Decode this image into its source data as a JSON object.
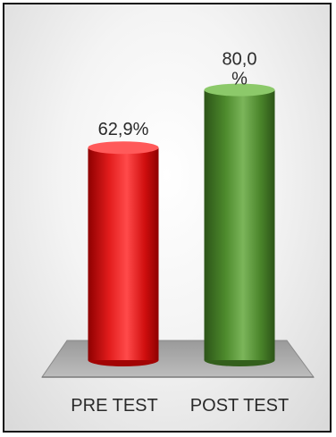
{
  "chart_data": {
    "type": "bar",
    "categories": [
      "PRE TEST",
      "POST TEST"
    ],
    "values": [
      62.9,
      80.0
    ],
    "value_labels": [
      "62,9%",
      "80,0 %"
    ],
    "ylim": [
      0,
      100
    ],
    "grid": false,
    "legend": "none",
    "colors": [
      "#d40f0f",
      "#4f8a2e"
    ],
    "title": "",
    "xlabel": "",
    "ylabel": ""
  }
}
